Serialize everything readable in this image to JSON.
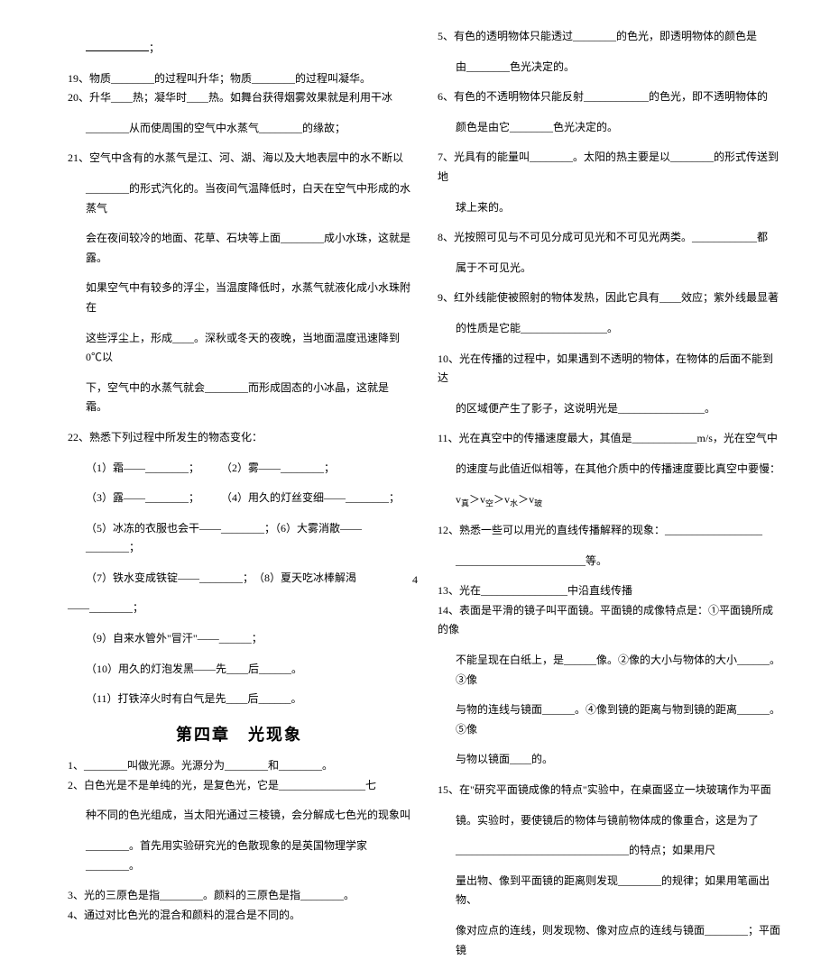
{
  "page_number": "4",
  "chapter_title": "第四章　光现象",
  "left": {
    "firstline": "；",
    "l19": "19、物质________的过程叫升华；物质________的过程叫凝华。",
    "l20": "20、升华____热；凝华时____热。如舞台获得烟雾效果就是利用干冰",
    "l20b": "________从而使周围的空气中水蒸气________的缘故；",
    "l21": "21、空气中含有的水蒸气是江、河、湖、海以及大地表层中的水不断以",
    "l21b": "________的形式汽化的。当夜间气温降低时，白天在空气中形成的水蒸气",
    "l21c": "会在夜间较冷的地面、花草、石块等上面________成小水珠，这就是露。",
    "l21d": "如果空气中有较多的浮尘，当温度降低时，水蒸气就液化成小水珠附在",
    "l21e": "这些浮尘上，形成____。深秋或冬天的夜晚，当地面温度迅速降到0℃以",
    "l21f": "下，空气中的水蒸气就会________而形成固态的小冰晶，这就是 霜。",
    "l22": "22、熟悉下列过程中所发生的物态变化：",
    "s1": "（1）霜——________；　　　（2）雾——________；",
    "s3": "（3）露——________；　　　（4）用久的灯丝变细——________；",
    "s5": "（5）冰冻的衣服也会干——________；（6）大雾消散——________；",
    "s7": "（7）铁水变成铁锭——________；　（8）夏天吃冰棒解渴",
    "s8d": "——________；",
    "s9": "（9）自来水管外\"冒汗\"——______；",
    "s10": "（10）用久的灯泡发黑——先____后______。",
    "s11": "（11）打铁淬火时有白气是先____后______。",
    "q1": "1、________叫做光源。光源分为________和________。",
    "q2": "2、白色光是不是单纯的光，是复色光，它是________________七",
    "q2b": "种不同的色光组成，当太阳光通过三棱镜，会分解成七色光的现象叫",
    "q2c": "________。首先用实验研究光的色散现象的是英国物理学家________。",
    "q3": "3、光的三原色是指________。颜料的三原色是指________。",
    "q4": "4、通过对比色光的混合和颜料的混合是不同的。"
  },
  "right": {
    "r5": "5、有色的透明物体只能透过________的色光，即透明物体的颜色是",
    "r5b": "由________色光决定的。",
    "r6": "6、有色的不透明物体只能反射____________的色光，即不透明物体的",
    "r6b": "颜色是由它________色光决定的。",
    "r7": "7、光具有的能量叫________。太阳的热主要是以________的形式传送到地",
    "r7b": "球上来的。",
    "r8": "8、光按照可见与不可见分成可见光和不可见光两类。____________都",
    "r8b": "属于不可见光。",
    "r9": "9、红外线能使被照射的物体发热，因此它具有____效应；紫外线最显著",
    "r9b": "的性质是它能________________。",
    "r10": "10、光在传播的过程中，如果遇到不透明的物体，在物体的后面不能到达",
    "r10b": "的区域便产生了影子，这说明光是________________。",
    "r11": "11、光在真空中的传播速度最大，其值是____________m/s，光在空气中",
    "r11b": "的速度与此值近似相等，在其他介质中的传播速度要比真空中要慢：",
    "r11c": "v真＞v空＞v水＞v玻璃",
    "r12": "12、熟悉一些可以用光的直线传播解释的现象：__________________",
    "r12b": "________________________等。",
    "r13": "13、光在________________中沿直线传播",
    "r14": "14、表面是平滑的镜子叫平面镜。平面镜的成像特点是：①平面镜所成的像",
    "r14b": "不能呈现在白纸上，是______像。②像的大小与物体的大小______。③像",
    "r14c": "与物的连线与镜面______。④像到镜的距离与物到镜的距离______。⑤像",
    "r14d": "与物以镜面____的。",
    "r15": "15、在\"研究平面镜成像的特点\"实验中，在桌面竖立一块玻璃作为平面",
    "r15b": "镜。实验时，要使镜后的物体与镜前物体成的像重合，这是为了",
    "r15c": "________________________________的特点；如果用尺",
    "r15d": "量出物、像到平面镜的距离则发现________的规律；如果用笔画出物、",
    "r15e": "像对应点的连线，则发现物、像对应点的连线与镜面________；平面镜"
  }
}
